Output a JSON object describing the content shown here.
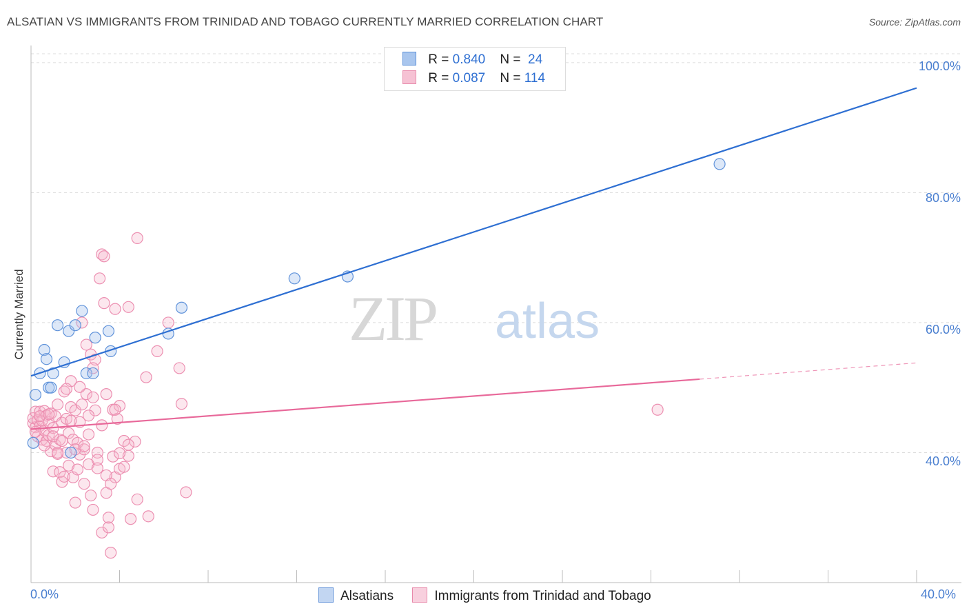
{
  "header": {
    "title": "ALSATIAN VS IMMIGRANTS FROM TRINIDAD AND TOBAGO CURRENTLY MARRIED CORRELATION CHART",
    "source": "Source: ZipAtlas.com"
  },
  "watermark": {
    "zip": "ZIP",
    "atlas": "atlas"
  },
  "legend_stats": [
    {
      "r_label": "R =",
      "r_value": "0.840",
      "n_label": "N =",
      "n_value": "24"
    },
    {
      "r_label": "R =",
      "r_value": "0.087",
      "n_label": "N =",
      "n_value": "114"
    }
  ],
  "colors": {
    "blue": "#2e6fd2",
    "blue_fill": "#a9c6ee",
    "pink": "#e8699a",
    "pink_fill": "#f6b9cd",
    "tick_text": "#4a7fd0"
  },
  "chart_data": {
    "type": "scatter",
    "title": "ALSATIAN VS IMMIGRANTS FROM TRINIDAD AND TOBAGO CURRENTLY MARRIED CORRELATION CHART",
    "xlabel": "",
    "ylabel": "Currently Married",
    "xlim": [
      0,
      40
    ],
    "ylim": [
      20,
      102
    ],
    "x_tick_labels": [
      "0.0%",
      "40.0%"
    ],
    "y_ticks": [
      40,
      60,
      80,
      100
    ],
    "y_tick_labels": [
      "40.0%",
      "60.0%",
      "80.0%",
      "100.0%"
    ],
    "grid": true,
    "series": [
      {
        "name": "Alsatians",
        "color": "#2e6fd2",
        "trend": {
          "x0": 0,
          "y0": 51.8,
          "x1": 40,
          "y1": 96.1,
          "solid_until": 40
        },
        "points": [
          [
            0.2,
            48.9
          ],
          [
            0.4,
            52.2
          ],
          [
            0.6,
            55.8
          ],
          [
            0.7,
            54.4
          ],
          [
            0.8,
            50.0
          ],
          [
            0.9,
            50.0
          ],
          [
            1.0,
            52.2
          ],
          [
            1.2,
            59.6
          ],
          [
            1.5,
            53.9
          ],
          [
            1.7,
            58.7
          ],
          [
            1.8,
            40.0
          ],
          [
            2.0,
            59.6
          ],
          [
            2.3,
            61.8
          ],
          [
            2.5,
            52.2
          ],
          [
            2.8,
            52.2
          ],
          [
            2.9,
            57.7
          ],
          [
            3.5,
            58.7
          ],
          [
            3.6,
            55.6
          ],
          [
            6.2,
            58.3
          ],
          [
            6.8,
            62.3
          ],
          [
            11.9,
            66.8
          ],
          [
            14.3,
            67.1
          ],
          [
            31.1,
            84.4
          ],
          [
            0.1,
            41.5
          ]
        ]
      },
      {
        "name": "Immigrants from Trinidad and Tobago",
        "color": "#e8699a",
        "trend": {
          "x0": 0,
          "y0": 43.6,
          "x1": 40,
          "y1": 53.8,
          "solid_until": 30.2
        },
        "points": [
          [
            0.1,
            44.5
          ],
          [
            0.1,
            45.3
          ],
          [
            0.2,
            46.3
          ],
          [
            0.2,
            43.9
          ],
          [
            0.3,
            45.0
          ],
          [
            0.3,
            42.5
          ],
          [
            0.4,
            44.1
          ],
          [
            0.4,
            46.3
          ],
          [
            0.5,
            42.0
          ],
          [
            0.5,
            44.9
          ],
          [
            0.6,
            43.4
          ],
          [
            0.6,
            46.4
          ],
          [
            0.7,
            41.8
          ],
          [
            0.7,
            45.7
          ],
          [
            0.8,
            44.7
          ],
          [
            0.8,
            42.7
          ],
          [
            0.9,
            46.0
          ],
          [
            0.9,
            40.2
          ],
          [
            1.0,
            43.8
          ],
          [
            1.0,
            37.1
          ],
          [
            1.1,
            45.6
          ],
          [
            1.1,
            41.2
          ],
          [
            1.2,
            47.4
          ],
          [
            1.2,
            39.8
          ],
          [
            1.3,
            37.0
          ],
          [
            1.3,
            42.0
          ],
          [
            1.4,
            35.5
          ],
          [
            1.4,
            44.6
          ],
          [
            1.5,
            36.3
          ],
          [
            1.5,
            49.4
          ],
          [
            1.6,
            40.0
          ],
          [
            1.6,
            45.2
          ],
          [
            1.7,
            43.0
          ],
          [
            1.7,
            38.0
          ],
          [
            1.8,
            51.0
          ],
          [
            1.8,
            47.0
          ],
          [
            1.9,
            36.2
          ],
          [
            1.9,
            42.0
          ],
          [
            2.0,
            32.3
          ],
          [
            2.0,
            46.5
          ],
          [
            2.1,
            41.5
          ],
          [
            2.1,
            37.4
          ],
          [
            2.2,
            44.7
          ],
          [
            2.2,
            39.7
          ],
          [
            2.3,
            60.0
          ],
          [
            2.3,
            47.4
          ],
          [
            2.4,
            40.5
          ],
          [
            2.4,
            35.2
          ],
          [
            2.5,
            56.6
          ],
          [
            2.5,
            49.0
          ],
          [
            2.6,
            42.8
          ],
          [
            2.6,
            38.2
          ],
          [
            2.7,
            55.1
          ],
          [
            2.7,
            33.4
          ],
          [
            2.8,
            48.5
          ],
          [
            2.8,
            31.2
          ],
          [
            2.9,
            54.3
          ],
          [
            2.9,
            46.5
          ],
          [
            3.0,
            40.0
          ],
          [
            3.0,
            37.6
          ],
          [
            3.1,
            66.8
          ],
          [
            3.2,
            70.5
          ],
          [
            3.2,
            27.7
          ],
          [
            3.3,
            70.2
          ],
          [
            3.3,
            63.0
          ],
          [
            3.4,
            49.0
          ],
          [
            3.4,
            33.8
          ],
          [
            3.5,
            28.5
          ],
          [
            3.5,
            30.0
          ],
          [
            3.6,
            24.6
          ],
          [
            3.7,
            46.6
          ],
          [
            3.7,
            39.4
          ],
          [
            3.8,
            62.1
          ],
          [
            3.8,
            36.2
          ],
          [
            3.9,
            45.2
          ],
          [
            4.0,
            47.2
          ],
          [
            4.0,
            37.5
          ],
          [
            4.2,
            41.8
          ],
          [
            4.4,
            62.4
          ],
          [
            4.4,
            39.5
          ],
          [
            4.5,
            29.8
          ],
          [
            4.7,
            41.7
          ],
          [
            4.8,
            73.0
          ],
          [
            4.8,
            32.8
          ],
          [
            5.2,
            51.6
          ],
          [
            5.3,
            30.2
          ],
          [
            5.7,
            55.6
          ],
          [
            6.2,
            60.0
          ],
          [
            6.7,
            53.0
          ],
          [
            6.8,
            47.5
          ],
          [
            7.0,
            33.9
          ],
          [
            28.3,
            46.6
          ],
          [
            0.2,
            43.2
          ],
          [
            0.4,
            45.6
          ],
          [
            0.6,
            41.1
          ],
          [
            0.8,
            45.9
          ],
          [
            1.0,
            42.5
          ],
          [
            1.2,
            40.0
          ],
          [
            1.4,
            41.8
          ],
          [
            1.6,
            49.8
          ],
          [
            1.8,
            44.9
          ],
          [
            2.0,
            40.5
          ],
          [
            2.2,
            50.1
          ],
          [
            2.4,
            41.0
          ],
          [
            2.6,
            45.7
          ],
          [
            2.8,
            53.0
          ],
          [
            3.0,
            38.9
          ],
          [
            3.2,
            44.2
          ],
          [
            3.4,
            36.5
          ],
          [
            3.6,
            35.2
          ],
          [
            3.8,
            46.6
          ],
          [
            4.0,
            39.9
          ],
          [
            4.2,
            37.8
          ],
          [
            4.4,
            41.2
          ]
        ]
      }
    ]
  },
  "bottom_legend": [
    {
      "label": "Alsatians"
    },
    {
      "label": "Immigrants from Trinidad and Tobago"
    }
  ]
}
